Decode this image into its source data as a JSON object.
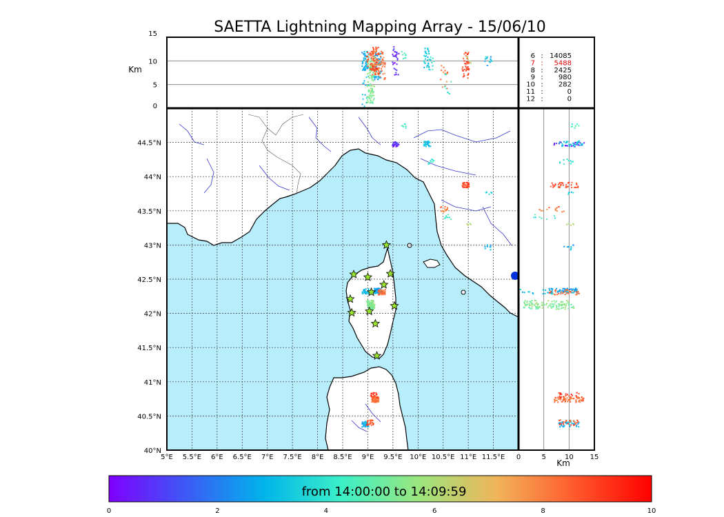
{
  "title": "SAETTA Lightning Mapping Array - 15/06/10",
  "top_panel": {
    "ylabel": "Km",
    "yticks": [
      "0",
      "5",
      "10",
      "15"
    ],
    "ylim": [
      0,
      15
    ],
    "grid_km": [
      5,
      10
    ]
  },
  "side_panel": {
    "xlabel": "Km",
    "xticks": [
      "0",
      "5",
      "10",
      "15"
    ],
    "xlim": [
      0,
      15
    ]
  },
  "map": {
    "lon_range": [
      5.0,
      12.0
    ],
    "lat_range": [
      40.0,
      45.0
    ],
    "lon_labels": [
      "5°E",
      "5.5°E",
      "6°E",
      "6.5°E",
      "7°E",
      "7.5°E",
      "8°E",
      "8.5°E",
      "9°E",
      "9.5°E",
      "10°E",
      "10.5°E",
      "11°E",
      "11.5°E"
    ],
    "lat_labels": [
      "40°N",
      "40.5°N",
      "41°N",
      "41.5°N",
      "42°N",
      "42.5°N",
      "43°N",
      "43.5°N",
      "44°N",
      "44.5°N"
    ],
    "sea_color": "#b8edfb",
    "land_color": "#ffffff",
    "river_color": "#3333cc",
    "station_color": "#9be62e",
    "stations": [
      [
        9.37,
        43.0
      ],
      [
        8.72,
        42.57
      ],
      [
        9.0,
        42.53
      ],
      [
        9.45,
        42.58
      ],
      [
        9.32,
        42.42
      ],
      [
        9.07,
        42.31
      ],
      [
        8.65,
        42.21
      ],
      [
        9.53,
        42.11
      ],
      [
        8.68,
        42.01
      ],
      [
        9.03,
        42.03
      ],
      [
        9.15,
        41.85
      ],
      [
        9.18,
        41.38
      ]
    ]
  },
  "stats": [
    {
      "label": "6",
      "sep": ":",
      "value": "14085",
      "color": "#000000"
    },
    {
      "label": "7",
      "sep": ":",
      "value": "5488",
      "color": "#dd0000"
    },
    {
      "label": "8",
      "sep": ":",
      "value": "2425",
      "color": "#000000"
    },
    {
      "label": "9",
      "sep": ":",
      "value": "980",
      "color": "#000000"
    },
    {
      "label": "10",
      "sep": ":",
      "value": "282",
      "color": "#000000"
    },
    {
      "label": "11",
      "sep": ":",
      "value": "0",
      "color": "#000000"
    },
    {
      "label": "12",
      "sep": ":",
      "value": "0",
      "color": "#000000"
    }
  ],
  "colorbar": {
    "label": "from 14:00:00 to 14:09:59",
    "ticks": [
      "0",
      "2",
      "4",
      "6",
      "8",
      "10"
    ],
    "range": [
      0,
      10
    ],
    "colors": [
      "#7f00ff",
      "#3c5af5",
      "#00b4eb",
      "#3cf0c8",
      "#9be67d",
      "#f0b45a",
      "#ff5a2d",
      "#ff0000"
    ]
  },
  "chart_data": {
    "type": "scatter",
    "title": "SAETTA Lightning Mapping Array - 15/06/10",
    "x_unit": "deg lon",
    "y_unit": "deg lat",
    "color_range": [
      0,
      10
    ],
    "clusters": [
      {
        "lon": 9.55,
        "lat": 44.47,
        "alt": [
          7,
          13
        ],
        "t": 0.6,
        "n": 30
      },
      {
        "lon": 9.73,
        "lat": 44.74,
        "alt": [
          10,
          12
        ],
        "t": 4.5,
        "n": 8
      },
      {
        "lon": 10.18,
        "lat": 44.48,
        "alt": [
          8,
          13
        ],
        "t": 3.2,
        "n": 30
      },
      {
        "lon": 10.25,
        "lat": 44.22,
        "alt": [
          8,
          12
        ],
        "t": 4.0,
        "n": 10
      },
      {
        "lon": 10.52,
        "lat": 43.52,
        "alt": [
          4,
          9
        ],
        "t": 8.2,
        "n": 14
      },
      {
        "lon": 10.6,
        "lat": 43.41,
        "alt": [
          3,
          8
        ],
        "t": 4.3,
        "n": 8
      },
      {
        "lon": 10.95,
        "lat": 43.88,
        "alt": [
          6,
          12
        ],
        "t": 8.8,
        "n": 40
      },
      {
        "lon": 11.02,
        "lat": 43.32,
        "alt": [
          9,
          11
        ],
        "t": 6.0,
        "n": 5
      },
      {
        "lon": 11.38,
        "lat": 42.96,
        "alt": [
          9,
          11
        ],
        "t": 2.7,
        "n": 8
      },
      {
        "lon": 11.4,
        "lat": 43.75,
        "alt": [
          9,
          11
        ],
        "t": 3.5,
        "n": 5
      },
      {
        "lon": 9.2,
        "lat": 42.33,
        "alt": [
          6,
          12
        ],
        "t": 2.7,
        "n": 60
      },
      {
        "lon": 9.28,
        "lat": 42.31,
        "alt": [
          6,
          12
        ],
        "t": 8.2,
        "n": 40
      },
      {
        "lon": 8.95,
        "lat": 42.32,
        "alt": [
          0,
          12
        ],
        "t": 3.0,
        "n": 25
      },
      {
        "lon": 9.05,
        "lat": 42.15,
        "alt": [
          1,
          10
        ],
        "t": 5.5,
        "n": 60
      },
      {
        "lon": 9.07,
        "lat": 42.1,
        "alt": [
          1,
          11
        ],
        "t": 5.3,
        "n": 60
      },
      {
        "lon": 9.15,
        "lat": 40.74,
        "alt": [
          7,
          13
        ],
        "t": 8.2,
        "n": 70
      },
      {
        "lon": 9.12,
        "lat": 40.8,
        "alt": [
          8,
          12
        ],
        "t": 9.0,
        "n": 20
      },
      {
        "lon": 8.95,
        "lat": 40.38,
        "alt": [
          8,
          12
        ],
        "t": 2.7,
        "n": 40
      },
      {
        "lon": 9.05,
        "lat": 40.4,
        "alt": [
          8,
          12
        ],
        "t": 8.5,
        "n": 25
      }
    ]
  }
}
